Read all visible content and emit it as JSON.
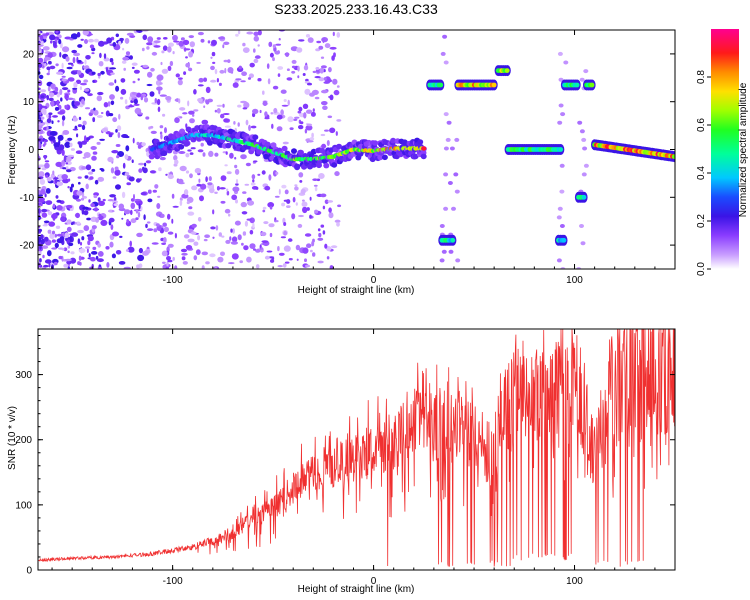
{
  "title": "S233.2025.233.16.43.C33",
  "colorbar": {
    "label": "Normalized spectral amplitude",
    "ticks": [
      0.0,
      0.2,
      0.4,
      0.6,
      0.8
    ],
    "tick_labels": [
      "0.0",
      "0.2",
      "0.4",
      "0.6",
      "0.8"
    ],
    "range": [
      0,
      1
    ]
  },
  "colors": {
    "snr_line": "#f03030",
    "cmap": [
      "#ffffff",
      "#d8b8ff",
      "#a070ff",
      "#6a1ee6",
      "#3414e0",
      "#1a4cff",
      "#00c8ff",
      "#00ff60",
      "#e0ff00",
      "#ff8c00",
      "#ff1010",
      "#ff0090"
    ]
  },
  "chart_data": [
    {
      "type": "heatmap",
      "xlabel": "Height of straight line (km)",
      "ylabel": "Frequency (Hz)",
      "xlim": [
        -167,
        150
      ],
      "ylim": [
        -25,
        25
      ],
      "xticks": [
        -100,
        0,
        100
      ],
      "xtick_labels": [
        "-100",
        "0",
        "100"
      ],
      "yticks": [
        -20,
        -10,
        0,
        10,
        20
      ],
      "ytick_labels": [
        "-20",
        "-10",
        "0",
        "10",
        "20"
      ],
      "grid": false,
      "ridge": {
        "x": [
          -110,
          -100,
          -90,
          -80,
          -70,
          -60,
          -50,
          -40,
          -30,
          -20,
          -10,
          0,
          10,
          20,
          25
        ],
        "y": [
          0,
          1.5,
          3,
          3,
          2,
          1,
          -0.5,
          -2,
          -2,
          -1.5,
          0,
          -0.3,
          0.2,
          0.2,
          0.2
        ],
        "amplitude": [
          0.3,
          0.35,
          0.4,
          0.45,
          0.5,
          0.55,
          0.55,
          0.6,
          0.6,
          0.65,
          0.7,
          0.75,
          0.8,
          0.85,
          0.85
        ]
      },
      "segments": [
        {
          "x": [
            67,
            94
          ],
          "y": 0,
          "amplitude": 0.55
        },
        {
          "x": [
            110,
            150
          ],
          "y": [
            1,
            -1.5
          ],
          "amplitude": 0.85
        },
        {
          "x": [
            42,
            60
          ],
          "y": 13.5,
          "amplitude": 0.8
        },
        {
          "x": [
            62,
            67
          ],
          "y": 16.5,
          "amplitude": 0.7
        },
        {
          "x": [
            28,
            34
          ],
          "y": 13.5,
          "amplitude": 0.5
        },
        {
          "x": [
            95,
            102
          ],
          "y": 13.5,
          "amplitude": 0.55
        },
        {
          "x": [
            106,
            109
          ],
          "y": 13.5,
          "amplitude": 0.6
        },
        {
          "x": [
            34,
            40
          ],
          "y": -19,
          "amplitude": 0.5
        },
        {
          "x": [
            92,
            95
          ],
          "y": -19,
          "amplitude": 0.45
        },
        {
          "x": [
            102,
            105
          ],
          "y": -10,
          "amplitude": 0.5
        }
      ]
    },
    {
      "type": "line",
      "xlabel": "Height of straight line (km)",
      "ylabel": "SNR (10 * v/v)",
      "xlim": [
        -167,
        150
      ],
      "ylim": [
        0,
        370
      ],
      "xticks": [
        -100,
        0,
        100
      ],
      "xtick_labels": [
        "-100",
        "0",
        "100"
      ],
      "yticks": [
        0,
        100,
        200,
        300
      ],
      "ytick_labels": [
        "0",
        "100",
        "200",
        "300"
      ],
      "grid": false,
      "series": [
        {
          "x": [
            -167,
            -150,
            -130,
            -110,
            -90,
            -80,
            -70,
            -60,
            -50,
            -40,
            -30,
            -20,
            -10,
            0,
            10,
            20,
            30,
            40,
            50,
            55,
            60,
            65,
            70,
            80,
            90,
            100,
            105,
            108,
            112,
            118,
            125,
            135,
            150
          ],
          "y": [
            15,
            18,
            20,
            25,
            35,
            45,
            55,
            80,
            95,
            125,
            150,
            160,
            170,
            185,
            200,
            235,
            225,
            215,
            225,
            190,
            175,
            230,
            265,
            260,
            270,
            280,
            240,
            180,
            200,
            270,
            300,
            310,
            330
          ]
        }
      ],
      "dips": [
        {
          "x": [
            30,
            68
          ],
          "y": 5
        },
        {
          "x": [
            68,
            100
          ],
          "y": 15
        },
        {
          "x": [
            110,
            135
          ],
          "y": 5
        }
      ]
    }
  ]
}
